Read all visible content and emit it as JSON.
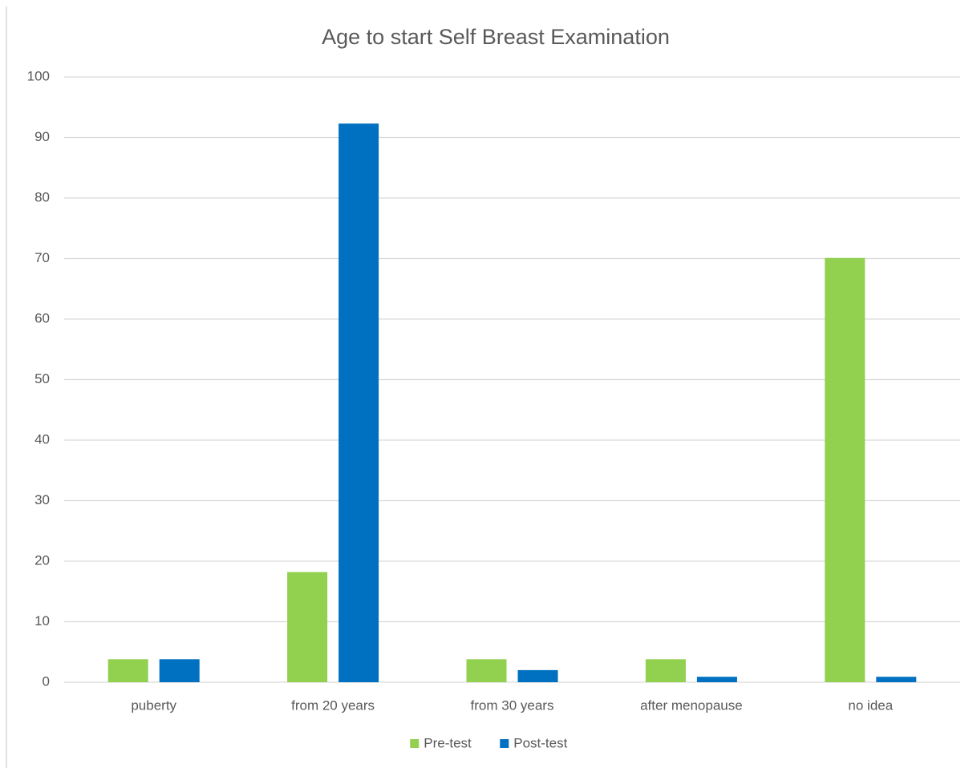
{
  "chart_data": {
    "type": "bar",
    "title": "Age to start Self Breast Examination",
    "categories": [
      "puberty",
      "from 20 years",
      "from 30 years",
      "after menopause",
      "no idea"
    ],
    "series": [
      {
        "name": "Pre-test",
        "color": "#92d050",
        "values": [
          3.8,
          18.2,
          3.8,
          3.8,
          70.1
        ]
      },
      {
        "name": "Post-test",
        "color": "#0070c0",
        "values": [
          3.8,
          92.3,
          2,
          0.9,
          0.9
        ]
      }
    ],
    "ylim": [
      0,
      100
    ],
    "yticks": [
      0,
      10,
      20,
      30,
      40,
      50,
      60,
      70,
      80,
      90,
      100
    ],
    "grid": true,
    "legend": "bottom"
  }
}
